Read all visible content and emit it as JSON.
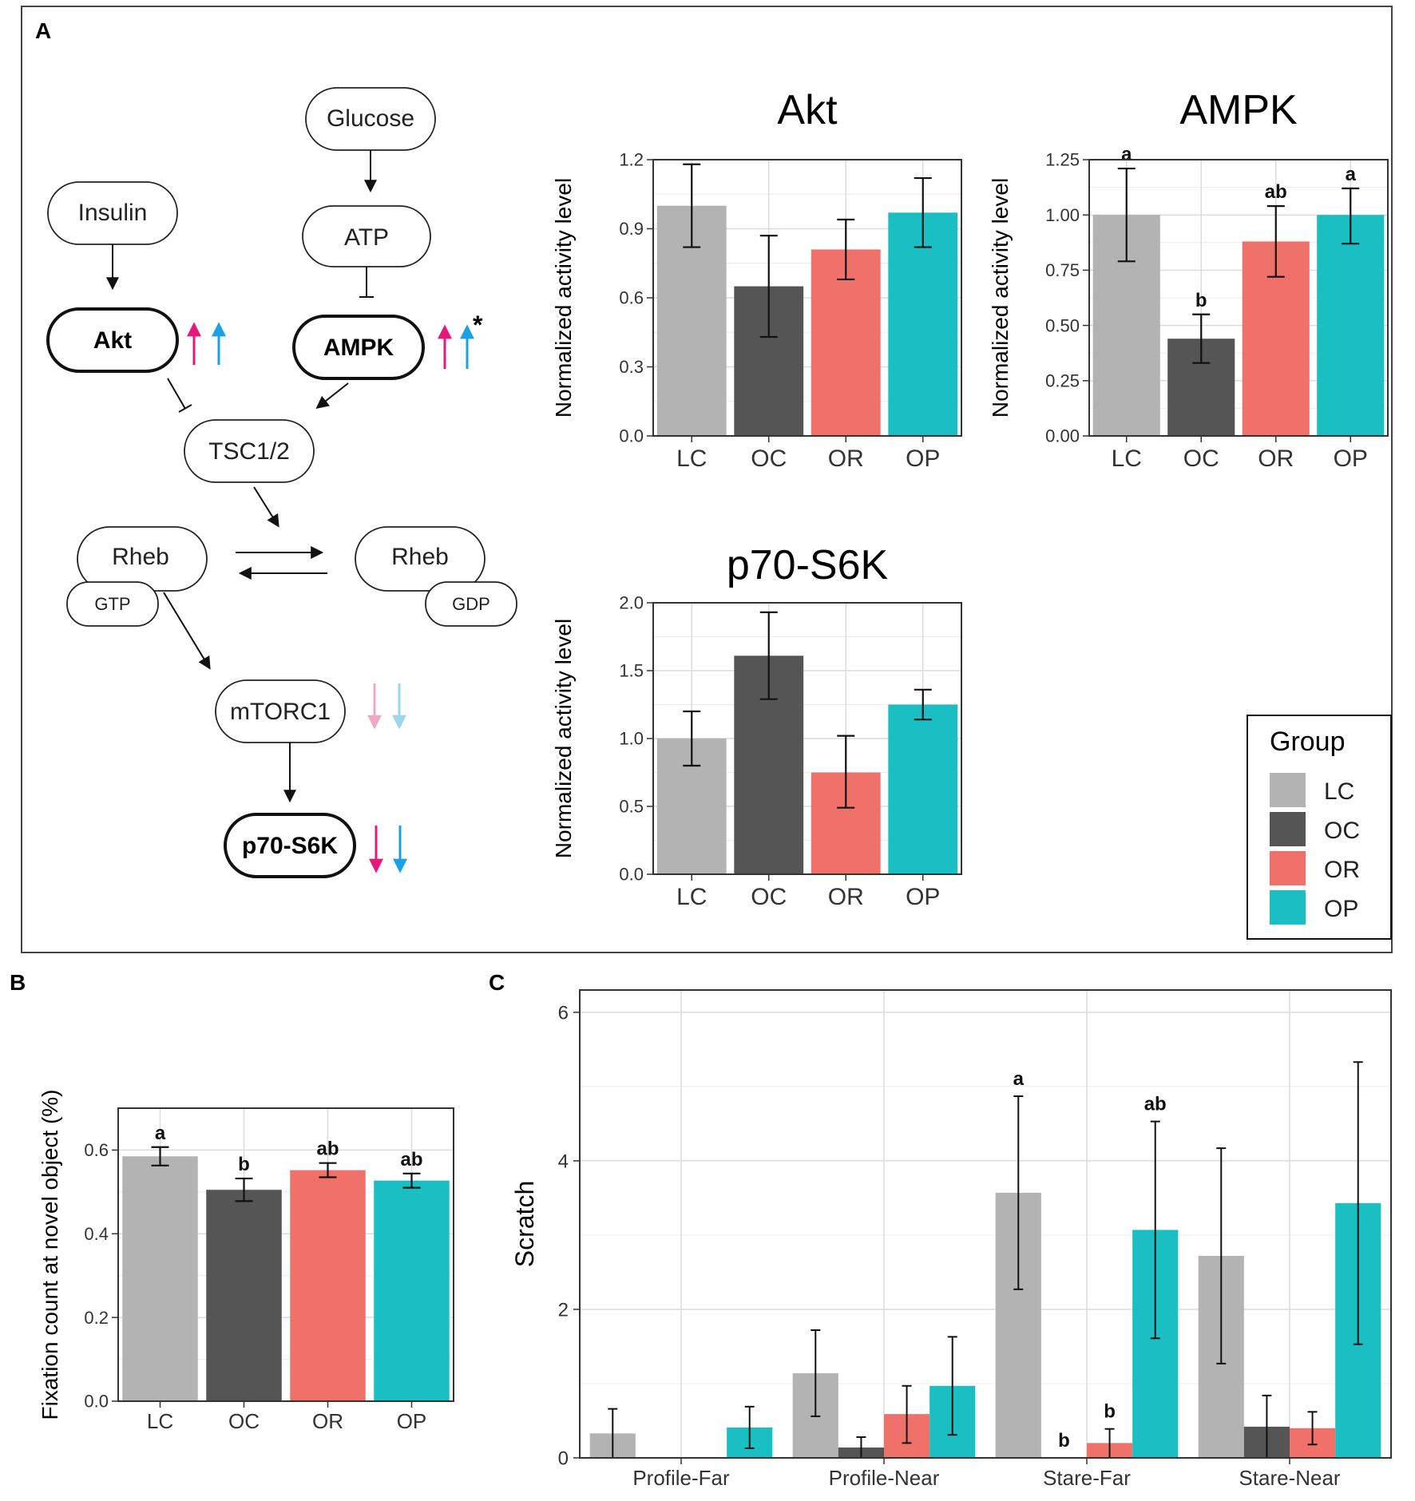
{
  "colors": {
    "LC": "#b3b3b3",
    "OC": "#555555",
    "OR": "#f0706a",
    "OP": "#1abfc4",
    "magenta": "#e6197a",
    "blue": "#1aa0e6",
    "magenta_light": "#f0a7c8",
    "blue_light": "#9ed6ec"
  },
  "panels": {
    "A": "A",
    "B": "B",
    "C": "C"
  },
  "pathway": {
    "insulin": "Insulin",
    "glucose": "Glucose",
    "atp": "ATP",
    "akt": "Akt",
    "ampk": "AMPK",
    "ampk_star": "*",
    "tsc": "TSC1/2",
    "rheb_left": "Rheb",
    "gtp": "GTP",
    "rheb_right": "Rheb",
    "gdp": "GDP",
    "mtorc1": "mTORC1",
    "p70": "p70-S6K"
  },
  "legend": {
    "title": "Group",
    "items": [
      "LC",
      "OC",
      "OR",
      "OP"
    ]
  },
  "chart_data": [
    {
      "id": "akt",
      "type": "bar",
      "title": "Akt",
      "ylabel": "Normalized activity level",
      "categories": [
        "LC",
        "OC",
        "OR",
        "OP"
      ],
      "values": [
        1.0,
        0.65,
        0.81,
        0.97
      ],
      "err_low": [
        0.82,
        0.43,
        0.68,
        0.82
      ],
      "err_high": [
        1.18,
        0.87,
        0.94,
        1.12
      ],
      "ylim": [
        0,
        1.2
      ],
      "yticks": [
        0,
        0.3,
        0.6,
        0.9,
        1.2
      ],
      "ytick_labels": [
        "0.0",
        "0.3",
        "0.6",
        "0.9",
        "1.2"
      ],
      "labels": [
        "",
        "",
        "",
        ""
      ]
    },
    {
      "id": "ampk",
      "type": "bar",
      "title": "AMPK",
      "ylabel": "Normalized activity level",
      "categories": [
        "LC",
        "OC",
        "OR",
        "OP"
      ],
      "values": [
        1.0,
        0.44,
        0.88,
        1.0
      ],
      "err_low": [
        0.79,
        0.33,
        0.72,
        0.87
      ],
      "err_high": [
        1.21,
        0.55,
        1.04,
        1.12
      ],
      "ylim": [
        0,
        1.25
      ],
      "yticks": [
        0,
        0.25,
        0.5,
        0.75,
        1.0,
        1.25
      ],
      "ytick_labels": [
        "0.00",
        "0.25",
        "0.50",
        "0.75",
        "1.00",
        "1.25"
      ],
      "labels": [
        "a",
        "b",
        "ab",
        "a"
      ]
    },
    {
      "id": "p70",
      "type": "bar",
      "title": "p70-S6K",
      "ylabel": "Normalized activity level",
      "categories": [
        "LC",
        "OC",
        "OR",
        "OP"
      ],
      "values": [
        1.0,
        1.61,
        0.75,
        1.25
      ],
      "err_low": [
        0.8,
        1.29,
        0.49,
        1.14
      ],
      "err_high": [
        1.2,
        1.93,
        1.02,
        1.36
      ],
      "ylim": [
        0,
        2.0
      ],
      "yticks": [
        0,
        0.5,
        1.0,
        1.5,
        2.0
      ],
      "ytick_labels": [
        "0.0",
        "0.5",
        "1.0",
        "1.5",
        "2.0"
      ],
      "labels": [
        "",
        "",
        "",
        ""
      ]
    },
    {
      "id": "fix",
      "type": "bar",
      "title": "",
      "ylabel": "Fixation count at novel object (%)",
      "categories": [
        "LC",
        "OC",
        "OR",
        "OP"
      ],
      "values": [
        0.585,
        0.505,
        0.552,
        0.527
      ],
      "err_low": [
        0.563,
        0.478,
        0.535,
        0.51
      ],
      "err_high": [
        0.607,
        0.532,
        0.569,
        0.544
      ],
      "ylim": [
        0,
        0.7
      ],
      "yticks": [
        0,
        0.2,
        0.4,
        0.6
      ],
      "ytick_labels": [
        "0.0",
        "0.2",
        "0.4",
        "0.6"
      ],
      "labels": [
        "a",
        "b",
        "ab",
        "ab"
      ]
    },
    {
      "id": "scratch",
      "type": "bar",
      "title": "",
      "ylabel": "Scratch",
      "categories": [
        "Profile-Far",
        "Profile-Near",
        "Stare-Far",
        "Stare-Near"
      ],
      "groups": [
        "LC",
        "OC",
        "OR",
        "OP"
      ],
      "series": [
        {
          "name": "LC",
          "values": [
            0.33,
            1.14,
            3.57,
            2.72
          ],
          "err_low": [
            0.0,
            0.56,
            2.27,
            1.27
          ],
          "err_high": [
            0.66,
            1.72,
            4.87,
            4.17
          ],
          "labels": [
            "",
            "",
            "a",
            ""
          ]
        },
        {
          "name": "OC",
          "values": [
            0.0,
            0.14,
            0.0,
            0.42
          ],
          "err_low": [
            0.0,
            0.0,
            0.0,
            0.0
          ],
          "err_high": [
            0.0,
            0.28,
            0.0,
            0.84
          ],
          "labels": [
            "",
            "",
            "b",
            ""
          ]
        },
        {
          "name": "OR",
          "values": [
            0.0,
            0.59,
            0.2,
            0.4
          ],
          "err_low": [
            0.0,
            0.2,
            0.0,
            0.18
          ],
          "err_high": [
            0.0,
            0.97,
            0.39,
            0.62
          ],
          "labels": [
            "",
            "",
            "b",
            ""
          ]
        },
        {
          "name": "OP",
          "values": [
            0.41,
            0.97,
            3.07,
            3.43
          ],
          "err_low": [
            0.13,
            0.31,
            1.61,
            1.53
          ],
          "err_high": [
            0.69,
            1.63,
            4.53,
            5.33
          ],
          "labels": [
            "",
            "",
            "ab",
            ""
          ]
        }
      ],
      "ylim": [
        0,
        6.3
      ],
      "yticks": [
        0,
        2,
        4,
        6
      ],
      "ytick_labels": [
        "0",
        "2",
        "4",
        "6"
      ]
    }
  ]
}
